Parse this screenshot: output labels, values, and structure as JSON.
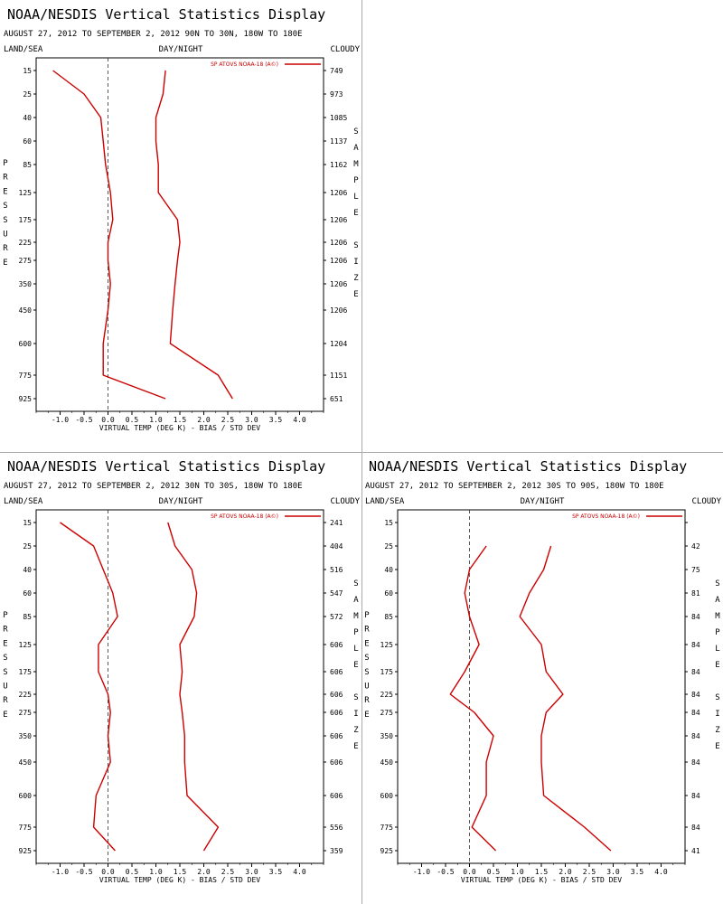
{
  "panels": [
    {
      "title": "NOAA/NESDIS Vertical Statistics Display",
      "subtitle": "AUGUST 27, 2012 TO SEPTEMBER 2, 2012  90N TO 30N, 180W TO 180E",
      "label_left": "LAND/SEA",
      "label_center": "DAY/NIGHT",
      "label_right": "CLOUDY",
      "left_axis_label": "PRESSURE",
      "right_axis_label": "SAMPLE SIZE",
      "legend": "SP ATOVS NOAA-18 (A©)",
      "xlabel": "VIRTUAL TEMP (DEG K) - BIAS / STD DEV",
      "chart_data": {
        "type": "line",
        "xlim": [
          -1.5,
          4.5
        ],
        "x_ticks": [
          "-1.0",
          "-0.5",
          "0.0",
          "0.5",
          "1.0",
          "1.5",
          "2.0",
          "2.5",
          "3.0",
          "3.5",
          "4.0"
        ],
        "x_tick_values": [
          -1.0,
          -0.5,
          0.0,
          0.5,
          1.0,
          1.5,
          2.0,
          2.5,
          3.0,
          3.5,
          4.0
        ],
        "pressure_levels": [
          "15",
          "25",
          "40",
          "60",
          "85",
          "125",
          "175",
          "225",
          "275",
          "350",
          "450",
          "600",
          "775",
          "925"
        ],
        "sample_size": [
          "749",
          "973",
          "1085",
          "1137",
          "1162",
          "1206",
          "1206",
          "1206",
          "1206",
          "1206",
          "1206",
          "1204",
          "1151",
          "651"
        ],
        "series": [
          {
            "values": [
              -1.15,
              -0.5,
              -0.15,
              -0.1,
              -0.05,
              0.05,
              0.1,
              0.0,
              0.0,
              0.05,
              0.0,
              -0.1,
              -0.1,
              1.2
            ]
          },
          {
            "values": [
              1.2,
              1.15,
              1.0,
              1.0,
              1.05,
              1.05,
              1.45,
              1.5,
              1.45,
              1.4,
              1.35,
              1.3,
              2.3,
              2.6
            ]
          }
        ]
      }
    },
    {
      "title": "NOAA/NESDIS Vertical Statistics Display",
      "subtitle": "AUGUST 27, 2012 TO SEPTEMBER 2, 2012  30N TO 30S, 180W TO 180E",
      "label_left": "LAND/SEA",
      "label_center": "DAY/NIGHT",
      "label_right": "CLOUDY",
      "left_axis_label": "PRESSURE",
      "right_axis_label": "SAMPLE SIZE",
      "legend": "SP ATOVS NOAA-18 (A©)",
      "xlabel": "VIRTUAL TEMP (DEG K) - BIAS / STD DEV",
      "chart_data": {
        "type": "line",
        "xlim": [
          -1.5,
          4.5
        ],
        "x_ticks": [
          "-1.0",
          "-0.5",
          "0.0",
          "0.5",
          "1.0",
          "1.5",
          "2.0",
          "2.5",
          "3.0",
          "3.5",
          "4.0"
        ],
        "x_tick_values": [
          -1.0,
          -0.5,
          0.0,
          0.5,
          1.0,
          1.5,
          2.0,
          2.5,
          3.0,
          3.5,
          4.0
        ],
        "pressure_levels": [
          "15",
          "25",
          "40",
          "60",
          "85",
          "125",
          "175",
          "225",
          "275",
          "350",
          "450",
          "600",
          "775",
          "925"
        ],
        "sample_size": [
          "241",
          "404",
          "516",
          "547",
          "572",
          "606",
          "606",
          "606",
          "606",
          "606",
          "606",
          "606",
          "556",
          "359"
        ],
        "series": [
          {
            "values": [
              -1.0,
              -0.3,
              -0.1,
              0.1,
              0.2,
              -0.2,
              -0.2,
              0.0,
              0.05,
              0.0,
              0.05,
              -0.25,
              -0.3,
              0.15
            ]
          },
          {
            "values": [
              1.25,
              1.4,
              1.75,
              1.85,
              1.8,
              1.5,
              1.55,
              1.5,
              1.55,
              1.6,
              1.6,
              1.65,
              2.3,
              2.0
            ]
          }
        ]
      }
    },
    {
      "title": "NOAA/NESDIS Vertical Statistics Display",
      "subtitle": "AUGUST 27, 2012 TO SEPTEMBER 2, 2012  30S TO 90S, 180W TO 180E",
      "label_left": "LAND/SEA",
      "label_center": "DAY/NIGHT",
      "label_right": "CLOUDY",
      "left_axis_label": "PRESSURE",
      "right_axis_label": "SAMPLE SIZE",
      "legend": "SP ATOVS NOAA-18 (A©)",
      "xlabel": "VIRTUAL TEMP (DEG K) - BIAS / STD DEV",
      "chart_data": {
        "type": "line",
        "xlim": [
          -1.5,
          4.5
        ],
        "x_ticks": [
          "-1.0",
          "-0.5",
          "0.0",
          "0.5",
          "1.0",
          "1.5",
          "2.0",
          "2.5",
          "3.0",
          "3.5",
          "4.0"
        ],
        "x_tick_values": [
          -1.0,
          -0.5,
          0.0,
          0.5,
          1.0,
          1.5,
          2.0,
          2.5,
          3.0,
          3.5,
          4.0
        ],
        "pressure_levels": [
          "15",
          "25",
          "40",
          "60",
          "85",
          "125",
          "175",
          "225",
          "275",
          "350",
          "450",
          "600",
          "775",
          "925"
        ],
        "sample_size": [
          "",
          "42",
          "75",
          "81",
          "84",
          "84",
          "84",
          "84",
          "84",
          "84",
          "84",
          "84",
          "84",
          "41"
        ],
        "series": [
          {
            "values": [
              null,
              0.35,
              0.0,
              -0.1,
              0.0,
              0.2,
              -0.1,
              -0.4,
              0.1,
              0.5,
              0.35,
              0.35,
              0.05,
              0.55
            ]
          },
          {
            "values": [
              null,
              1.7,
              1.55,
              1.25,
              1.05,
              1.5,
              1.6,
              1.95,
              1.6,
              1.5,
              1.5,
              1.55,
              2.4,
              2.95
            ]
          }
        ]
      }
    }
  ],
  "colors": {
    "series": "#cc0000",
    "axis": "#000000",
    "zero_line": "#333333",
    "divider": "#aaaaaa"
  }
}
